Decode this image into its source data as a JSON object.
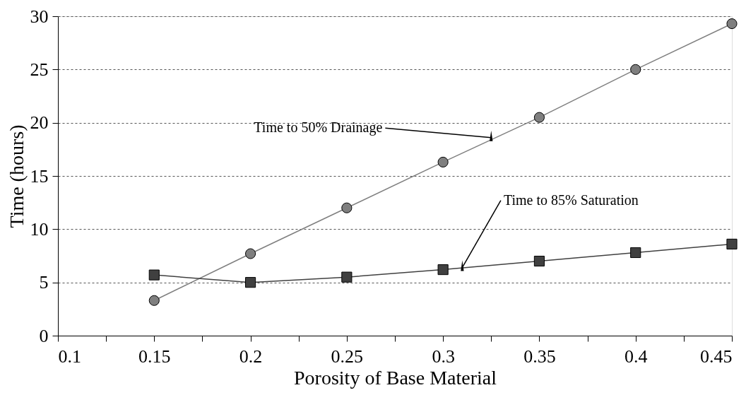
{
  "chart_data": {
    "type": "line",
    "xlabel": "Porosity of Base Material",
    "ylabel": "Time (hours)",
    "x": [
      0.15,
      0.2,
      0.25,
      0.3,
      0.35,
      0.4,
      0.45
    ],
    "series": [
      {
        "color": "#7f7f7f",
        "marker": "circle",
        "values": [
          3.3,
          7.7,
          12,
          16.3,
          20.5,
          25,
          29.3
        ]
      },
      {
        "color": "#404040",
        "marker": "square",
        "values": [
          5.7,
          5.0,
          5.5,
          6.2,
          7.0,
          7.8,
          8.6
        ]
      }
    ],
    "xlim": [
      0.1,
      0.45
    ],
    "xticks": [
      0.1,
      {
        "value": 0.125,
        "label": null
      },
      0.15,
      {
        "value": 0.175,
        "label": null
      },
      0.2,
      {
        "value": 0.225,
        "label": null
      },
      0.25,
      {
        "value": 0.275,
        "label": null
      },
      0.3,
      {
        "value": 0.325,
        "label": null
      },
      0.35,
      {
        "value": 0.375,
        "label": null
      },
      0.4,
      {
        "value": 0.425,
        "label": null
      },
      0.45
    ],
    "ylim": [
      0,
      30
    ],
    "yticks": [
      0,
      5,
      10,
      15,
      20,
      25,
      30
    ],
    "grid": "y",
    "line_style": "solid",
    "annotations": [
      {
        "text": "Time to 50% Drainage",
        "x": 0.325,
        "y": 18.6
      },
      {
        "text": "Time to 85% Saturation",
        "x": 0.31,
        "y": 6.4
      }
    ]
  }
}
